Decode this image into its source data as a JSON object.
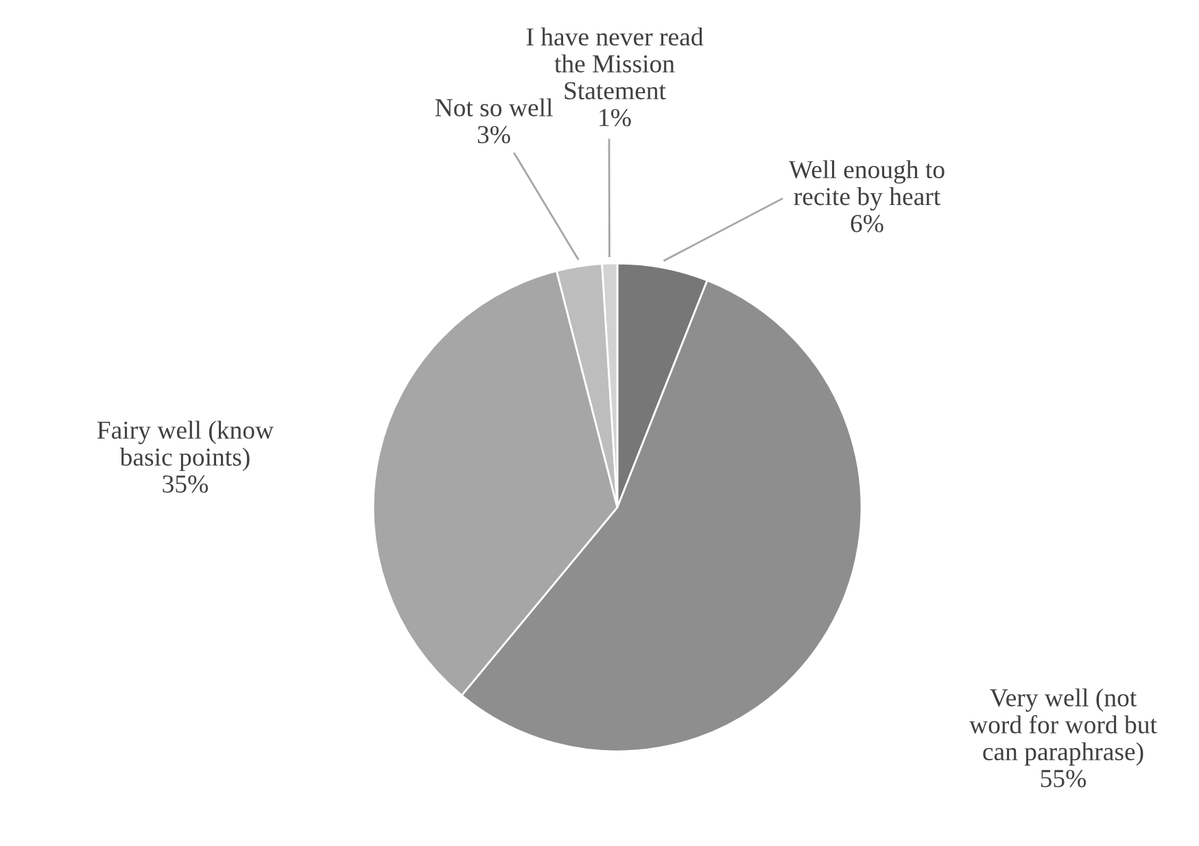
{
  "chart_data": {
    "type": "pie",
    "categories": [
      "Well enough to\nrecite by heart",
      "Very well (not\nword for word but\ncan paraphrase)",
      "Fairy well (know\nbasic points)",
      "Not so well",
      "I have never read\nthe Mission\nStatement"
    ],
    "values": [
      6,
      55,
      35,
      3,
      1
    ],
    "value_labels": [
      "6%",
      "55%",
      "35%",
      "3%",
      "1%"
    ],
    "colors": [
      "#777777",
      "#8e8e8e",
      "#a6a6a6",
      "#bdbdbd",
      "#d2d2d2"
    ]
  }
}
